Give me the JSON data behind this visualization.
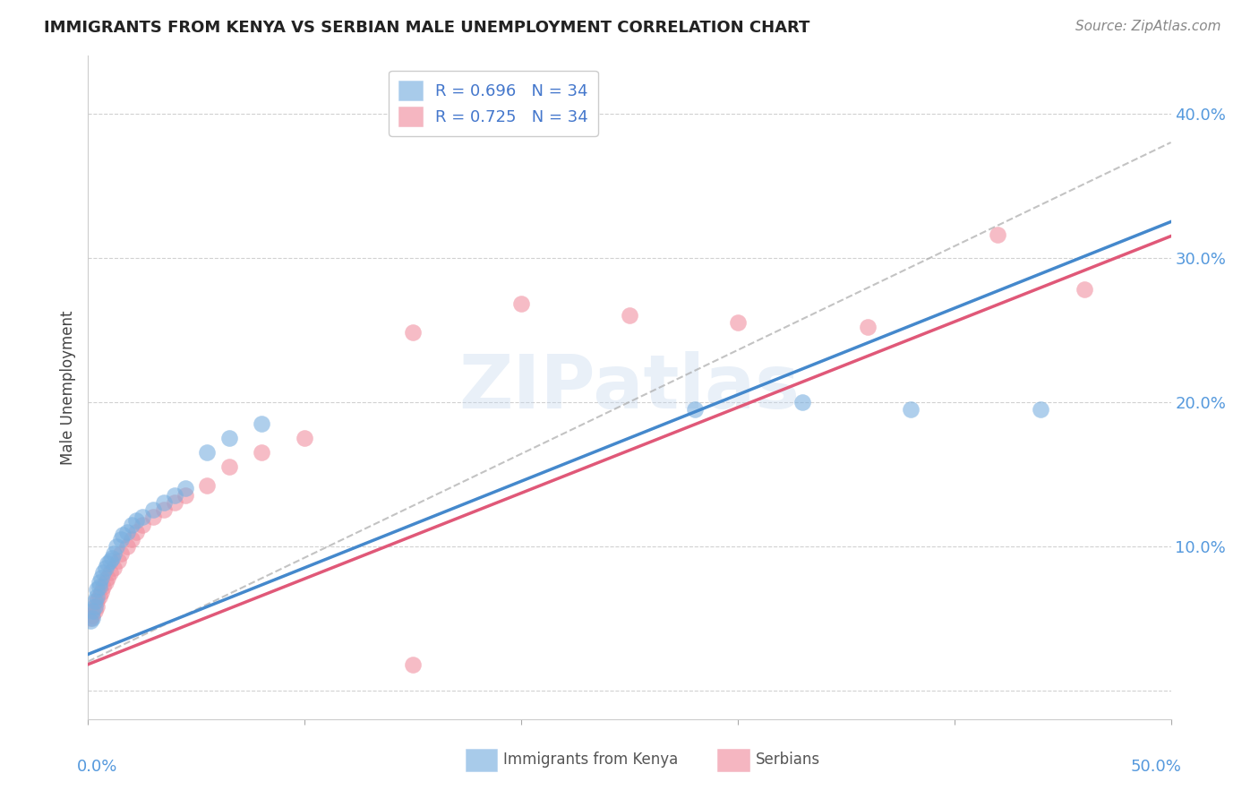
{
  "title": "IMMIGRANTS FROM KENYA VS SERBIAN MALE UNEMPLOYMENT CORRELATION CHART",
  "source": "Source: ZipAtlas.com",
  "ylabel": "Male Unemployment",
  "y_ticks": [
    0.0,
    0.1,
    0.2,
    0.3,
    0.4
  ],
  "y_tick_labels": [
    "",
    "10.0%",
    "20.0%",
    "30.0%",
    "40.0%"
  ],
  "xlim": [
    0.0,
    0.5
  ],
  "ylim": [
    -0.02,
    0.44
  ],
  "legend_r1": "R = 0.696   N = 34",
  "legend_r2": "R = 0.725   N = 34",
  "kenya_color": "#7ab0e0",
  "serbian_color": "#f090a0",
  "kenya_line_color": "#4488cc",
  "serbian_line_color": "#e05878",
  "dash_color": "#aaaaaa",
  "scatter_alpha": 0.6,
  "background_color": "#ffffff",
  "grid_color": "#cccccc",
  "kenya_points_x": [
    0.001,
    0.002,
    0.002,
    0.003,
    0.003,
    0.004,
    0.004,
    0.005,
    0.005,
    0.006,
    0.007,
    0.008,
    0.009,
    0.01,
    0.011,
    0.012,
    0.013,
    0.015,
    0.016,
    0.018,
    0.02,
    0.022,
    0.025,
    0.03,
    0.035,
    0.04,
    0.045,
    0.055,
    0.065,
    0.08,
    0.28,
    0.33,
    0.38,
    0.44
  ],
  "kenya_points_y": [
    0.048,
    0.05,
    0.055,
    0.058,
    0.062,
    0.065,
    0.07,
    0.072,
    0.075,
    0.078,
    0.082,
    0.085,
    0.088,
    0.09,
    0.092,
    0.095,
    0.1,
    0.105,
    0.108,
    0.11,
    0.115,
    0.118,
    0.12,
    0.125,
    0.13,
    0.135,
    0.14,
    0.165,
    0.175,
    0.185,
    0.195,
    0.2,
    0.195,
    0.195
  ],
  "serbian_points_x": [
    0.001,
    0.002,
    0.003,
    0.004,
    0.004,
    0.005,
    0.006,
    0.007,
    0.008,
    0.009,
    0.01,
    0.012,
    0.014,
    0.015,
    0.018,
    0.02,
    0.022,
    0.025,
    0.03,
    0.035,
    0.04,
    0.045,
    0.055,
    0.065,
    0.08,
    0.1,
    0.15,
    0.2,
    0.25,
    0.3,
    0.15,
    0.36,
    0.42,
    0.46
  ],
  "serbian_points_y": [
    0.05,
    0.052,
    0.055,
    0.058,
    0.062,
    0.065,
    0.068,
    0.072,
    0.075,
    0.078,
    0.082,
    0.085,
    0.09,
    0.095,
    0.1,
    0.105,
    0.11,
    0.115,
    0.12,
    0.125,
    0.13,
    0.135,
    0.142,
    0.155,
    0.165,
    0.175,
    0.248,
    0.268,
    0.26,
    0.255,
    0.018,
    0.252,
    0.316,
    0.278
  ],
  "kenya_line_x": [
    0.0,
    0.5
  ],
  "kenya_line_y": [
    0.025,
    0.325
  ],
  "serbian_line_x": [
    0.0,
    0.5
  ],
  "serbian_line_y": [
    0.018,
    0.315
  ],
  "dash_line_x": [
    0.0,
    0.5
  ],
  "dash_line_y": [
    0.02,
    0.38
  ],
  "watermark_text": "ZIPatlas",
  "bottom_legend_labels": [
    "Immigrants from Kenya",
    "Serbians"
  ]
}
